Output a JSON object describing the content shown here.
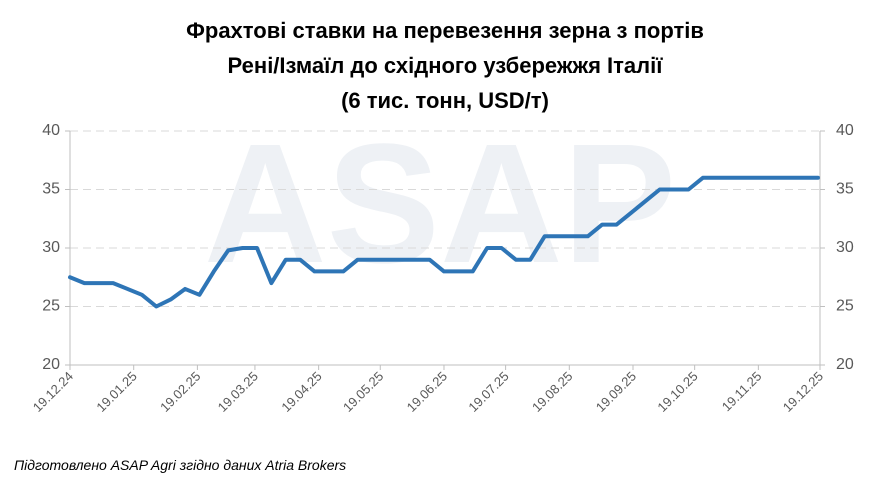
{
  "chart_data": {
    "type": "line",
    "title": [
      "Фрахтові ставки на перевезення зерна з портів",
      "Рені/Ізмаїл до східного узбережжя Італії",
      "(6 тис. тонн, USD/т)"
    ],
    "watermark": "ASAP",
    "note": "Підготовлено ASAP Agri згідно даних Atria Brokers",
    "x": [
      0,
      7,
      14,
      21,
      28,
      35,
      42,
      49,
      56,
      63,
      70,
      77,
      84,
      91,
      98,
      105,
      112,
      119,
      126,
      133,
      140,
      147,
      154,
      161,
      168,
      175,
      182,
      189,
      196,
      203,
      210,
      217,
      224,
      231,
      238,
      245,
      252,
      259,
      266,
      273,
      280,
      287,
      294,
      301,
      308,
      315,
      322,
      329,
      336,
      343,
      350,
      357,
      364
    ],
    "series": [
      {
        "color": "#2e75b6",
        "values": [
          27.5,
          27,
          27,
          27,
          26.5,
          26,
          25,
          25.6,
          26.5,
          26,
          28,
          29.8,
          30,
          30,
          27,
          29,
          29,
          28,
          28,
          28,
          29,
          29,
          29,
          29,
          29,
          29,
          28,
          28,
          28,
          30,
          30,
          29,
          29,
          31,
          31,
          31,
          31,
          32,
          32,
          33,
          34,
          35,
          35,
          35,
          36,
          36,
          36,
          36,
          36,
          36,
          36,
          36,
          36
        ]
      }
    ],
    "xlim": [
      0,
      365
    ],
    "xticks": [
      {
        "value": 0,
        "label": "19.12.24"
      },
      {
        "value": 31,
        "label": "19.01.25"
      },
      {
        "value": 62,
        "label": "19.02.25"
      },
      {
        "value": 90,
        "label": "19.03.25"
      },
      {
        "value": 121,
        "label": "19.04.25"
      },
      {
        "value": 151,
        "label": "19.05.25"
      },
      {
        "value": 182,
        "label": "19.06.25"
      },
      {
        "value": 212,
        "label": "19.07.25"
      },
      {
        "value": 243,
        "label": "19.08.25"
      },
      {
        "value": 274,
        "label": "19.09.25"
      },
      {
        "value": 304,
        "label": "19.10.25"
      },
      {
        "value": 335,
        "label": "19.11.25"
      },
      {
        "value": 365,
        "label": "19.12.25"
      }
    ],
    "ylim": [
      20,
      40
    ],
    "yticks": [
      20,
      25,
      30,
      35,
      40
    ],
    "y2lim": [
      20,
      40
    ],
    "y2ticks": [
      20,
      25,
      30,
      35,
      40
    ],
    "grid": true
  }
}
